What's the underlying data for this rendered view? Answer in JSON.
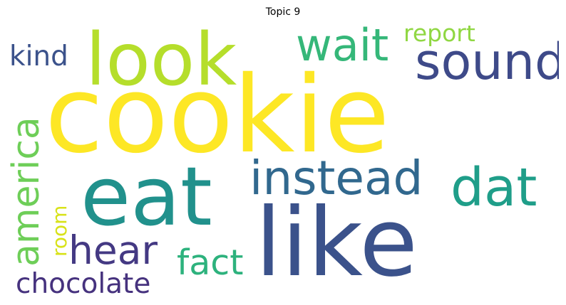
{
  "title": "Topic 9",
  "cloud": {
    "words": [
      {
        "text": "cookie",
        "color": "#fde725",
        "rotate": false
      },
      {
        "text": "like",
        "color": "#3b528b",
        "rotate": false
      },
      {
        "text": "eat",
        "color": "#21918c",
        "rotate": false
      },
      {
        "text": "look",
        "color": "#b5de2b",
        "rotate": false
      },
      {
        "text": "instead",
        "color": "#31688e",
        "rotate": false
      },
      {
        "text": "dat",
        "color": "#1f9e89",
        "rotate": false
      },
      {
        "text": "sound",
        "color": "#3e4a89",
        "rotate": false
      },
      {
        "text": "wait",
        "color": "#35b779",
        "rotate": false
      },
      {
        "text": "hear",
        "color": "#443983",
        "rotate": false
      },
      {
        "text": "america",
        "color": "#6ece58",
        "rotate": true
      },
      {
        "text": "fact",
        "color": "#2db27d",
        "rotate": false
      },
      {
        "text": "chocolate",
        "color": "#46327e",
        "rotate": false
      },
      {
        "text": "kind",
        "color": "#3b528b",
        "rotate": false
      },
      {
        "text": "report",
        "color": "#90d743",
        "rotate": false
      },
      {
        "text": "room",
        "color": "#d8e219",
        "rotate": true
      }
    ]
  }
}
